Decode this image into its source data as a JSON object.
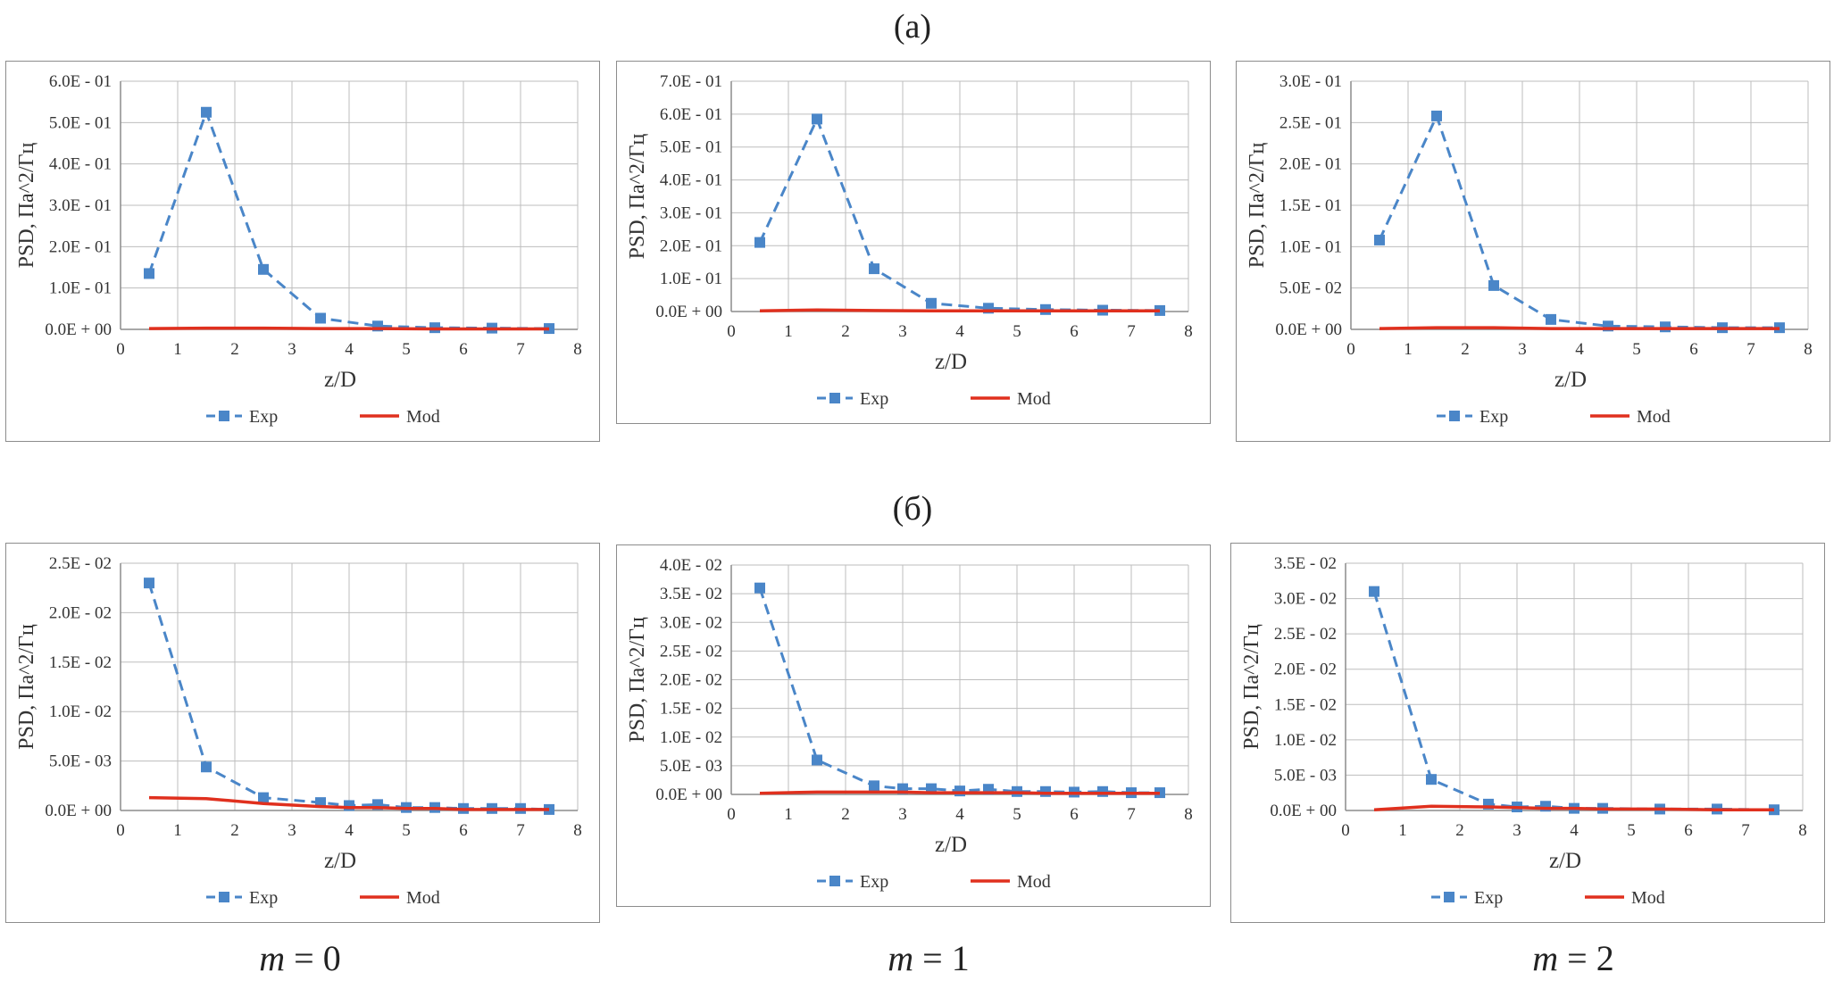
{
  "labels": {
    "row_a": "(a)",
    "row_b": "(б)",
    "columns": [
      {
        "var": "m",
        "eq": " = 0"
      },
      {
        "var": "m",
        "eq": " = 1"
      },
      {
        "var": "m",
        "eq": " = 2"
      }
    ]
  },
  "colors": {
    "exp": "#4a86c8",
    "mod": "#e0301e",
    "grid": "#bdbdbd",
    "frame": "#8c8c8c"
  },
  "chart_data": [
    {
      "type": "line",
      "panel": "a-m0",
      "xlabel": "z/D",
      "ylabel": "PSD, Па^2/Гц",
      "xlim": [
        0,
        8
      ],
      "xticks": [
        "0",
        "1",
        "2",
        "3",
        "4",
        "5",
        "6",
        "7",
        "8"
      ],
      "ylim": [
        0,
        0.6
      ],
      "yticks": [
        "0.0E + 00",
        "1.0E - 01",
        "2.0E - 01",
        "3.0E - 01",
        "4.0E - 01",
        "5.0E - 01",
        "6.0E - 01"
      ],
      "grid": true,
      "legend": "bottom",
      "x": [
        0.5,
        1.5,
        2.5,
        3.5,
        4.5,
        5.5,
        6.5,
        7.5
      ],
      "series": [
        {
          "name": "Exp",
          "style": "dashed-square",
          "values": [
            0.135,
            0.525,
            0.145,
            0.027,
            0.008,
            0.004,
            0.003,
            0.002
          ]
        },
        {
          "name": "Mod",
          "style": "solid",
          "values": [
            0.002,
            0.003,
            0.003,
            0.002,
            0.002,
            0.001,
            0.001,
            0.001
          ]
        }
      ]
    },
    {
      "type": "line",
      "panel": "a-m1",
      "xlabel": "z/D",
      "ylabel": "PSD, Па^2/Гц",
      "xlim": [
        0,
        8
      ],
      "xticks": [
        "0",
        "1",
        "2",
        "3",
        "4",
        "5",
        "6",
        "7",
        "8"
      ],
      "ylim": [
        0,
        0.7
      ],
      "yticks": [
        "0.0E + 00",
        "1.0E - 01",
        "2.0E - 01",
        "3.0E - 01",
        "4.0E - 01",
        "5.0E - 01",
        "6.0E - 01",
        "7.0E - 01"
      ],
      "grid": true,
      "legend": "bottom",
      "x": [
        0.5,
        1.5,
        2.5,
        3.5,
        4.5,
        5.5,
        6.5,
        7.5
      ],
      "series": [
        {
          "name": "Exp",
          "style": "dashed-square",
          "values": [
            0.21,
            0.585,
            0.13,
            0.025,
            0.01,
            0.006,
            0.004,
            0.003
          ]
        },
        {
          "name": "Mod",
          "style": "solid",
          "values": [
            0.002,
            0.005,
            0.003,
            0.002,
            0.002,
            0.002,
            0.002,
            0.002
          ]
        }
      ]
    },
    {
      "type": "line",
      "panel": "a-m2",
      "xlabel": "z/D",
      "ylabel": "PSD, Па^2/Гц",
      "xlim": [
        0,
        8
      ],
      "xticks": [
        "0",
        "1",
        "2",
        "3",
        "4",
        "5",
        "6",
        "7",
        "8"
      ],
      "ylim": [
        0,
        0.3
      ],
      "yticks": [
        "0.0E + 00",
        "5.0E - 02",
        "1.0E - 01",
        "1.5E - 01",
        "2.0E - 01",
        "2.5E - 01",
        "3.0E - 01"
      ],
      "grid": true,
      "legend": "bottom",
      "x": [
        0.5,
        1.5,
        2.5,
        3.5,
        4.5,
        5.5,
        6.5,
        7.5
      ],
      "series": [
        {
          "name": "Exp",
          "style": "dashed-square",
          "values": [
            0.108,
            0.258,
            0.053,
            0.012,
            0.004,
            0.003,
            0.002,
            0.002
          ]
        },
        {
          "name": "Mod",
          "style": "solid",
          "values": [
            0.001,
            0.002,
            0.002,
            0.001,
            0.001,
            0.001,
            0.001,
            0.001
          ]
        }
      ]
    },
    {
      "type": "line",
      "panel": "b-m0",
      "xlabel": "z/D",
      "ylabel": "PSD, Па^2/Гц",
      "xlim": [
        0,
        8
      ],
      "xticks": [
        "0",
        "1",
        "2",
        "3",
        "4",
        "5",
        "6",
        "7",
        "8"
      ],
      "ylim": [
        0,
        0.025
      ],
      "yticks": [
        "0.0E + 00",
        "5.0E - 03",
        "1.0E - 02",
        "1.5E - 02",
        "2.0E - 02",
        "2.5E - 02"
      ],
      "grid": true,
      "legend": "bottom",
      "x": [
        0.5,
        1.5,
        2.5,
        3.5,
        4.0,
        4.5,
        5.0,
        5.5,
        6.0,
        6.5,
        7.0,
        7.5
      ],
      "series": [
        {
          "name": "Exp",
          "style": "dashed-square",
          "values": [
            0.023,
            0.0044,
            0.0013,
            0.0008,
            0.0005,
            0.0006,
            0.0003,
            0.0003,
            0.0002,
            0.0002,
            0.0002,
            0.0001
          ]
        },
        {
          "name": "Mod",
          "style": "solid",
          "values": [
            0.0013,
            0.0012,
            0.0007,
            0.0004,
            0.0003,
            0.0003,
            0.0002,
            0.0002,
            0.0001,
            0.0001,
            0.0001,
            0.0001
          ]
        }
      ]
    },
    {
      "type": "line",
      "panel": "b-m1",
      "xlabel": "z/D",
      "ylabel": "PSD, Па^2/Гц",
      "xlim": [
        0,
        8
      ],
      "xticks": [
        "0",
        "1",
        "2",
        "3",
        "4",
        "5",
        "6",
        "7",
        "8"
      ],
      "ylim": [
        0,
        0.04
      ],
      "yticks": [
        "0.0E + 00",
        "5.0E - 03",
        "1.0E - 02",
        "1.5E - 02",
        "2.0E - 02",
        "2.5E - 02",
        "3.0E - 02",
        "3.5E - 02",
        "4.0E - 02"
      ],
      "grid": true,
      "legend": "bottom",
      "x": [
        0.5,
        1.5,
        2.5,
        3.0,
        3.5,
        4.0,
        4.5,
        5.0,
        5.5,
        6.0,
        6.5,
        7.0,
        7.5
      ],
      "series": [
        {
          "name": "Exp",
          "style": "dashed-square",
          "values": [
            0.036,
            0.006,
            0.0015,
            0.001,
            0.001,
            0.0006,
            0.0009,
            0.0005,
            0.0005,
            0.0004,
            0.0005,
            0.0003,
            0.0003
          ]
        },
        {
          "name": "Mod",
          "style": "solid",
          "values": [
            0.0002,
            0.0004,
            0.0004,
            0.0004,
            0.0003,
            0.0003,
            0.0003,
            0.0003,
            0.0002,
            0.0002,
            0.0002,
            0.0002,
            0.0002
          ]
        }
      ]
    },
    {
      "type": "line",
      "panel": "b-m2",
      "xlabel": "z/D",
      "ylabel": "PSD, Па^2/Гц",
      "xlim": [
        0,
        8
      ],
      "xticks": [
        "0",
        "1",
        "2",
        "3",
        "4",
        "5",
        "6",
        "7",
        "8"
      ],
      "ylim": [
        0,
        0.035
      ],
      "yticks": [
        "0.0E + 00",
        "5.0E - 03",
        "1.0E - 02",
        "1.5E - 02",
        "2.0E - 02",
        "2.5E - 02",
        "3.0E - 02",
        "3.5E - 02"
      ],
      "grid": true,
      "legend": "bottom",
      "x": [
        0.5,
        1.5,
        2.5,
        3.0,
        3.5,
        4.0,
        4.5,
        5.5,
        6.5,
        7.5
      ],
      "series": [
        {
          "name": "Exp",
          "style": "dashed-square",
          "values": [
            0.031,
            0.0044,
            0.0009,
            0.0005,
            0.0006,
            0.0003,
            0.0003,
            0.0002,
            0.0002,
            0.0001
          ]
        },
        {
          "name": "Mod",
          "style": "solid",
          "values": [
            0.0001,
            0.0006,
            0.0005,
            0.0004,
            0.0003,
            0.0003,
            0.0002,
            0.0002,
            0.0001,
            0.0001
          ]
        }
      ]
    }
  ]
}
